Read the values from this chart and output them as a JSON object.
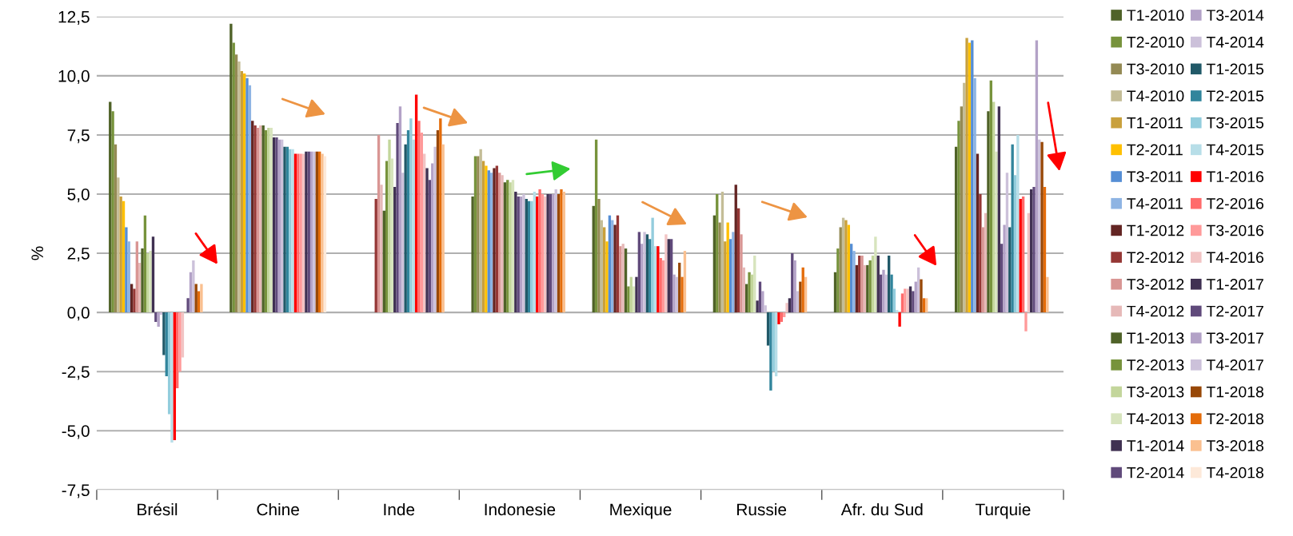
{
  "chart_data": {
    "type": "bar",
    "ylabel": "%",
    "categories": [
      "Brésil",
      "Chine",
      "Inde",
      "Indonesie",
      "Mexique",
      "Russie",
      "Afr. du Sud",
      "Turquie"
    ],
    "ylim": [
      -7.5,
      12.5
    ],
    "yticks": [
      {
        "value": -7.5,
        "label": "-7,5"
      },
      {
        "value": -5,
        "label": "-5,0"
      },
      {
        "value": -2.5,
        "label": "-2,5"
      },
      {
        "value": 0,
        "label": "0,0"
      },
      {
        "value": 2.5,
        "label": "2,5"
      },
      {
        "value": 5,
        "label": "5,0"
      },
      {
        "value": 7.5,
        "label": "7,5"
      },
      {
        "value": 10,
        "label": "10,0"
      },
      {
        "value": 12.5,
        "label": "12,5"
      }
    ],
    "grid": "y",
    "legend": "right",
    "series": [
      {
        "name": "T1-2010",
        "color": "#4f6228",
        "values": [
          8.9,
          12.2,
          null,
          4.9,
          4.5,
          4.1,
          1.7,
          7.0
        ]
      },
      {
        "name": "T2-2010",
        "color": "#77933c",
        "values": [
          8.5,
          11.4,
          null,
          6.6,
          7.3,
          5.0,
          2.7,
          8.1
        ]
      },
      {
        "name": "T3-2010",
        "color": "#948a54",
        "values": [
          7.1,
          10.9,
          null,
          6.6,
          4.8,
          3.8,
          3.6,
          8.7
        ]
      },
      {
        "name": "T4-2010",
        "color": "#c4bd97",
        "values": [
          5.7,
          10.6,
          null,
          6.9,
          3.9,
          5.1,
          4.0,
          9.7
        ]
      },
      {
        "name": "T1-2011",
        "color": "#c9a03c",
        "values": [
          4.9,
          10.2,
          null,
          6.4,
          3.6,
          3.0,
          3.9,
          11.6
        ]
      },
      {
        "name": "T2-2011",
        "color": "#ffc000",
        "values": [
          4.7,
          10.1,
          null,
          6.2,
          3.0,
          3.8,
          3.7,
          11.4
        ]
      },
      {
        "name": "T3-2011",
        "color": "#558ed5",
        "values": [
          3.6,
          9.9,
          null,
          6.0,
          4.1,
          3.1,
          2.9,
          11.5
        ]
      },
      {
        "name": "T4-2011",
        "color": "#8eb4e3",
        "values": [
          3.0,
          9.6,
          null,
          5.9,
          3.9,
          3.4,
          2.6,
          9.9
        ]
      },
      {
        "name": "T1-2012",
        "color": "#632523",
        "values": [
          1.2,
          8.1,
          null,
          6.1,
          3.7,
          5.4,
          2.0,
          6.7
        ]
      },
      {
        "name": "T2-2012",
        "color": "#953735",
        "values": [
          1.0,
          7.9,
          4.8,
          6.2,
          4.1,
          4.4,
          2.4,
          5.0
        ]
      },
      {
        "name": "T3-2012",
        "color": "#d99694",
        "values": [
          3.0,
          7.8,
          7.5,
          5.9,
          2.8,
          3.3,
          2.4,
          3.6
        ]
      },
      {
        "name": "T4-2012",
        "color": "#e6b9b8",
        "values": [
          2.1,
          7.9,
          5.4,
          5.8,
          2.9,
          1.9,
          2.0,
          4.2
        ]
      },
      {
        "name": "T1-2013",
        "color": "#4f6228",
        "values": [
          2.7,
          7.9,
          4.3,
          5.5,
          2.7,
          1.2,
          2.0,
          8.5
        ]
      },
      {
        "name": "T2-2013",
        "color": "#77933c",
        "values": [
          4.1,
          7.7,
          6.4,
          5.6,
          1.1,
          1.7,
          2.2,
          9.8
        ]
      },
      {
        "name": "T3-2013",
        "color": "#c3d69b",
        "values": [
          2.5,
          7.8,
          7.3,
          5.5,
          1.5,
          1.6,
          2.4,
          8.9
        ]
      },
      {
        "name": "T4-2013",
        "color": "#d7e4bd",
        "values": [
          2.6,
          7.8,
          6.5,
          5.6,
          1.1,
          2.4,
          3.2,
          6.8
        ]
      },
      {
        "name": "T1-2014",
        "color": "#403152",
        "values": [
          3.2,
          7.4,
          5.3,
          5.1,
          1.5,
          0.5,
          2.4,
          8.7
        ]
      },
      {
        "name": "T2-2014",
        "color": "#604a7b",
        "values": [
          -0.4,
          7.4,
          8.0,
          4.9,
          3.4,
          1.3,
          1.6,
          2.9
        ]
      },
      {
        "name": "T3-2014",
        "color": "#b3a2c7",
        "values": [
          -0.6,
          7.3,
          8.7,
          4.9,
          2.9,
          0.9,
          1.8,
          3.7
        ]
      },
      {
        "name": "T4-2014",
        "color": "#ccc1da",
        "values": [
          -0.1,
          7.3,
          5.9,
          5.0,
          3.4,
          0.3,
          1.6,
          5.9
        ]
      },
      {
        "name": "T1-2015",
        "color": "#215968",
        "values": [
          -1.8,
          7.0,
          7.1,
          4.8,
          3.3,
          -1.4,
          2.4,
          3.6
        ]
      },
      {
        "name": "T2-2015",
        "color": "#31859c",
        "values": [
          -2.7,
          7.0,
          7.7,
          4.7,
          3.1,
          -3.3,
          1.6,
          7.1
        ]
      },
      {
        "name": "T3-2015",
        "color": "#93cddd",
        "values": [
          -4.3,
          6.9,
          8.2,
          4.7,
          4.0,
          -2.5,
          1.0,
          5.8
        ]
      },
      {
        "name": "T4-2015",
        "color": "#b7dee8",
        "values": [
          -5.5,
          6.9,
          7.3,
          5.1,
          2.8,
          -2.7,
          0.1,
          7.5
        ]
      },
      {
        "name": "T1-2016",
        "color": "#ff0000",
        "values": [
          -5.4,
          6.7,
          9.2,
          4.9,
          2.8,
          -0.5,
          -0.6,
          4.8
        ]
      },
      {
        "name": "T2-2016",
        "color": "#ff6b6b",
        "values": [
          -3.2,
          6.7,
          8.1,
          5.2,
          2.3,
          -0.4,
          0.8,
          4.9
        ]
      },
      {
        "name": "T3-2016",
        "color": "#ff9a9a",
        "values": [
          -2.5,
          6.7,
          7.6,
          5.0,
          2.2,
          -0.2,
          1.0,
          -0.8
        ]
      },
      {
        "name": "T4-2016",
        "color": "#f2c4c4",
        "values": [
          -1.9,
          6.7,
          6.7,
          4.9,
          3.3,
          0.4,
          1.0,
          4.2
        ]
      },
      {
        "name": "T1-2017",
        "color": "#403152",
        "values": [
          null,
          6.8,
          6.1,
          5.0,
          3.1,
          0.6,
          1.1,
          5.2
        ]
      },
      {
        "name": "T2-2017",
        "color": "#604a7b",
        "values": [
          0.6,
          6.8,
          5.6,
          5.0,
          3.1,
          2.5,
          0.9,
          5.3
        ]
      },
      {
        "name": "T3-2017",
        "color": "#b3a2c7",
        "values": [
          1.7,
          6.8,
          6.3,
          5.0,
          1.6,
          2.2,
          1.3,
          11.5
        ]
      },
      {
        "name": "T4-2017",
        "color": "#ccc1da",
        "values": [
          2.2,
          6.8,
          7.0,
          5.2,
          1.5,
          0.9,
          1.9,
          7.3
        ]
      },
      {
        "name": "T1-2018",
        "color": "#984807",
        "values": [
          1.2,
          6.8,
          7.7,
          5.0,
          2.1,
          1.3,
          1.4,
          7.2
        ]
      },
      {
        "name": "T2-2018",
        "color": "#e46c0a",
        "values": [
          0.9,
          6.8,
          8.2,
          5.2,
          1.5,
          1.9,
          0.6,
          5.3
        ]
      },
      {
        "name": "T3-2018",
        "color": "#fac090",
        "values": [
          1.2,
          6.7,
          7.1,
          5.1,
          2.6,
          1.5,
          0.6,
          1.5
        ]
      },
      {
        "name": "T4-2018",
        "color": "#fde9d9",
        "values": [
          null,
          6.6,
          null,
          null,
          null,
          null,
          null,
          null
        ]
      }
    ]
  }
}
